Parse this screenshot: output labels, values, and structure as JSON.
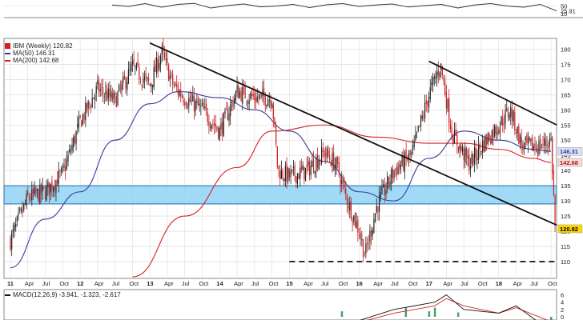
{
  "colors": {
    "up_candle": "#222222",
    "down_candle": "#cc1f1f",
    "ma50": "#3a3a9c",
    "ma200": "#d42020",
    "channel": "#111111",
    "support_band_fill": "#8fd3f4",
    "support_band_stroke": "#1f6fa8",
    "macd_hist": "#2e8b57",
    "macd_line": "#111111",
    "signal_line": "#d42020",
    "rsi_line": "#333333",
    "gridline": "#d8d8d8",
    "price_badge": "#ffd700"
  },
  "legend": {
    "price": "IBM (Weekly) 120.82",
    "ma50": "MA(50) 146.31",
    "ma200": "MA(200) 142.68",
    "macd": "MACD(12,26,9) -3.941, -1.323, -2.617"
  },
  "chart_data": [
    {
      "type": "line",
      "title": "RSI",
      "y_ticks": [
        50,
        25.91,
        10
      ],
      "ylim": [
        0,
        80
      ],
      "series": [
        {
          "values": [
            55,
            48,
            62,
            44,
            58,
            63,
            40,
            52,
            60,
            46,
            50,
            58,
            42,
            56,
            62,
            48,
            55,
            60,
            45,
            52,
            58,
            40,
            55,
            62,
            50,
            44,
            58,
            25.91
          ]
        }
      ]
    },
    {
      "type": "candlestick",
      "title": "IBM (Weekly) 120.82",
      "x_ticks": [
        "11",
        "Apr",
        "Jul",
        "Oct",
        "12",
        "Apr",
        "Jul",
        "Oct",
        "13",
        "Apr",
        "Jul",
        "Oct",
        "14",
        "Apr",
        "Jul",
        "Oct",
        "15",
        "Apr",
        "Jul",
        "Oct",
        "16",
        "Apr",
        "Jul",
        "Oct",
        "17",
        "Apr",
        "Jul",
        "Oct",
        "18",
        "Apr",
        "Jul",
        "Oct"
      ],
      "x_range": [
        "2011-01",
        "2018-10"
      ],
      "y_ticks": [
        180,
        175,
        170,
        165,
        160,
        155,
        150,
        145,
        140,
        135,
        130,
        125,
        120,
        115,
        110
      ],
      "ylim": [
        105,
        183
      ],
      "last_price": 120.82,
      "price_labels": [
        "146.31",
        "142.68",
        "120.82"
      ],
      "price_anchors": [
        {
          "date": "2011-01",
          "close": 117
        },
        {
          "date": "2011-04",
          "close": 131
        },
        {
          "date": "2011-07",
          "close": 133
        },
        {
          "date": "2011-10",
          "close": 139
        },
        {
          "date": "2012-01",
          "close": 156
        },
        {
          "date": "2012-04",
          "close": 167
        },
        {
          "date": "2012-07",
          "close": 163
        },
        {
          "date": "2012-10",
          "close": 174
        },
        {
          "date": "2013-01",
          "close": 168
        },
        {
          "date": "2013-03",
          "close": 179
        },
        {
          "date": "2013-05",
          "close": 168
        },
        {
          "date": "2013-07",
          "close": 164
        },
        {
          "date": "2013-10",
          "close": 160
        },
        {
          "date": "2014-01",
          "close": 153
        },
        {
          "date": "2014-04",
          "close": 166
        },
        {
          "date": "2014-07",
          "close": 164
        },
        {
          "date": "2014-10",
          "close": 164
        },
        {
          "date": "2014-11",
          "close": 140
        },
        {
          "date": "2015-01",
          "close": 138
        },
        {
          "date": "2015-04",
          "close": 140
        },
        {
          "date": "2015-07",
          "close": 146
        },
        {
          "date": "2015-09",
          "close": 142
        },
        {
          "date": "2015-11",
          "close": 130
        },
        {
          "date": "2016-01",
          "close": 120
        },
        {
          "date": "2016-02",
          "close": 112
        },
        {
          "date": "2016-04",
          "close": 128
        },
        {
          "date": "2016-07",
          "close": 140
        },
        {
          "date": "2016-10",
          "close": 145
        },
        {
          "date": "2017-01",
          "close": 165
        },
        {
          "date": "2017-03",
          "close": 175
        },
        {
          "date": "2017-05",
          "close": 152
        },
        {
          "date": "2017-08",
          "close": 142
        },
        {
          "date": "2017-10",
          "close": 148
        },
        {
          "date": "2018-01",
          "close": 155
        },
        {
          "date": "2018-03",
          "close": 160
        },
        {
          "date": "2018-05",
          "close": 148
        },
        {
          "date": "2018-08",
          "close": 148
        },
        {
          "date": "2018-10",
          "close": 150
        },
        {
          "date": "2018-10",
          "close": 120.82
        }
      ],
      "series": [
        {
          "name": "MA(50) 146.31",
          "values": [
            {
              "date": "2011-01",
              "v": 108
            },
            {
              "date": "2011-07",
              "v": 124
            },
            {
              "date": "2012-01",
              "v": 133
            },
            {
              "date": "2012-07",
              "v": 150
            },
            {
              "date": "2013-01",
              "v": 162
            },
            {
              "date": "2013-06",
              "v": 166
            },
            {
              "date": "2014-01",
              "v": 164
            },
            {
              "date": "2014-07",
              "v": 160
            },
            {
              "date": "2015-01",
              "v": 153
            },
            {
              "date": "2015-07",
              "v": 143
            },
            {
              "date": "2016-01",
              "v": 133
            },
            {
              "date": "2016-07",
              "v": 130
            },
            {
              "date": "2017-01",
              "v": 144
            },
            {
              "date": "2017-07",
              "v": 153
            },
            {
              "date": "2018-01",
              "v": 150
            },
            {
              "date": "2018-07",
              "v": 147
            },
            {
              "date": "2018-10",
              "v": 146.31
            }
          ]
        },
        {
          "name": "MA(200) 142.68",
          "values": [
            {
              "date": "2012-10",
              "v": 105
            },
            {
              "date": "2013-07",
              "v": 125
            },
            {
              "date": "2014-04",
              "v": 141
            },
            {
              "date": "2014-10",
              "v": 153
            },
            {
              "date": "2015-07",
              "v": 155
            },
            {
              "date": "2016-04",
              "v": 151
            },
            {
              "date": "2017-01",
              "v": 149
            },
            {
              "date": "2017-07",
              "v": 149
            },
            {
              "date": "2018-01",
              "v": 147
            },
            {
              "date": "2018-07",
              "v": 144
            },
            {
              "date": "2018-10",
              "v": 142.68
            }
          ]
        }
      ],
      "annotations": [
        {
          "kind": "trendline",
          "from": {
            "date": "2013-01",
            "price": 182
          },
          "to": {
            "date": "2018-11",
            "price": 122
          }
        },
        {
          "kind": "trendline",
          "from": {
            "date": "2017-01",
            "price": 176
          },
          "to": {
            "date": "2018-11",
            "price": 155
          }
        },
        {
          "kind": "support_band",
          "price_low": 129,
          "price_high": 135
        },
        {
          "kind": "dashed_level",
          "price": 110,
          "from": "2015-01",
          "to": "2018-11"
        }
      ]
    },
    {
      "type": "bar",
      "title": "MACD(12,26,9) -3.941, -1.323, -2.617",
      "x_range": [
        "2011-01",
        "2018-10"
      ],
      "y_ticks": [
        6,
        4,
        2,
        0
      ],
      "macd_line": [
        {
          "date": "2016-01",
          "v": -1
        },
        {
          "date": "2016-07",
          "v": 2
        },
        {
          "date": "2017-02",
          "v": 4
        },
        {
          "date": "2017-04",
          "v": 6
        },
        {
          "date": "2017-07",
          "v": 2
        },
        {
          "date": "2018-01",
          "v": 1
        },
        {
          "date": "2018-04",
          "v": 3
        },
        {
          "date": "2018-10",
          "v": -3.941
        }
      ],
      "signal_line": [
        {
          "date": "2016-01",
          "v": -1.5
        },
        {
          "date": "2016-07",
          "v": 1
        },
        {
          "date": "2017-02",
          "v": 3
        },
        {
          "date": "2017-04",
          "v": 5
        },
        {
          "date": "2017-07",
          "v": 3
        },
        {
          "date": "2018-01",
          "v": 1
        },
        {
          "date": "2018-04",
          "v": 2.5
        },
        {
          "date": "2018-10",
          "v": -1.323
        }
      ],
      "histogram_samples": [
        {
          "date": "2015-10",
          "v": 1.5
        },
        {
          "date": "2016-09",
          "v": 2.5
        },
        {
          "date": "2017-01",
          "v": 1.5
        },
        {
          "date": "2017-02",
          "v": 2.5
        },
        {
          "date": "2017-06",
          "v": 1.2
        },
        {
          "date": "2018-10",
          "v": -2.617
        }
      ]
    }
  ]
}
